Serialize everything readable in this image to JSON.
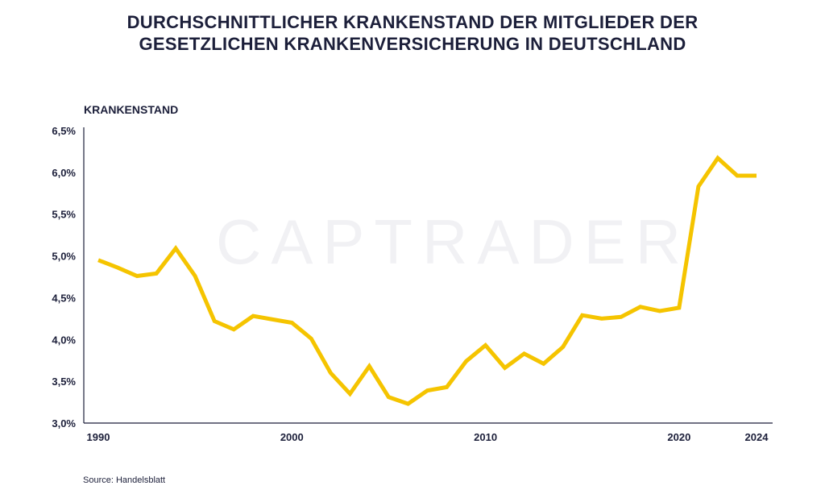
{
  "chart_data": {
    "type": "line",
    "title_lines": [
      "DURCHSCHNITTLICHER KRANKENSTAND DER MITGLIEDER DER",
      "GESETZLICHEN KRANKENVERSICHERUNG IN DEUTSCHLAND"
    ],
    "ylabel": "KRANKENSTAND",
    "xlabel": "",
    "watermark": "CAPTRADER",
    "source": "Source: Handelsblatt",
    "xlim": [
      1990,
      2024
    ],
    "ylim": [
      3.0,
      6.5
    ],
    "x_ticks": [
      1990,
      2000,
      2010,
      2020,
      2024
    ],
    "y_ticks": [
      {
        "value": 3.0,
        "label": "3,0%"
      },
      {
        "value": 3.5,
        "label": "3,5%"
      },
      {
        "value": 4.0,
        "label": "4,0%"
      },
      {
        "value": 4.5,
        "label": "4,5%"
      },
      {
        "value": 5.0,
        "label": "5,0%"
      },
      {
        "value": 5.5,
        "label": "5,5%"
      },
      {
        "value": 6.0,
        "label": "6,0%"
      },
      {
        "value": 6.5,
        "label": "6,5%"
      }
    ],
    "grid": false,
    "line_color": "#f5c400",
    "axis_color": "#1c1f3a",
    "series": [
      {
        "x": [
          1990,
          1991,
          1992,
          1993,
          1994,
          1995,
          1996,
          1997,
          1998,
          1999,
          2000,
          2001,
          2002,
          2003,
          2004,
          2005,
          2006,
          2007,
          2008,
          2009,
          2010,
          2011,
          2012,
          2013,
          2014,
          2015,
          2016,
          2017,
          2018,
          2019,
          2020,
          2021,
          2022,
          2023,
          2024
        ],
        "values": [
          4.95,
          4.86,
          4.76,
          4.79,
          5.09,
          4.76,
          4.22,
          4.12,
          4.28,
          4.24,
          4.2,
          4.01,
          3.6,
          3.35,
          3.68,
          3.31,
          3.23,
          3.39,
          3.43,
          3.74,
          3.93,
          3.66,
          3.83,
          3.71,
          3.91,
          4.29,
          4.25,
          4.27,
          4.39,
          4.34,
          4.38,
          5.83,
          6.17,
          5.96,
          5.96
        ]
      }
    ]
  }
}
